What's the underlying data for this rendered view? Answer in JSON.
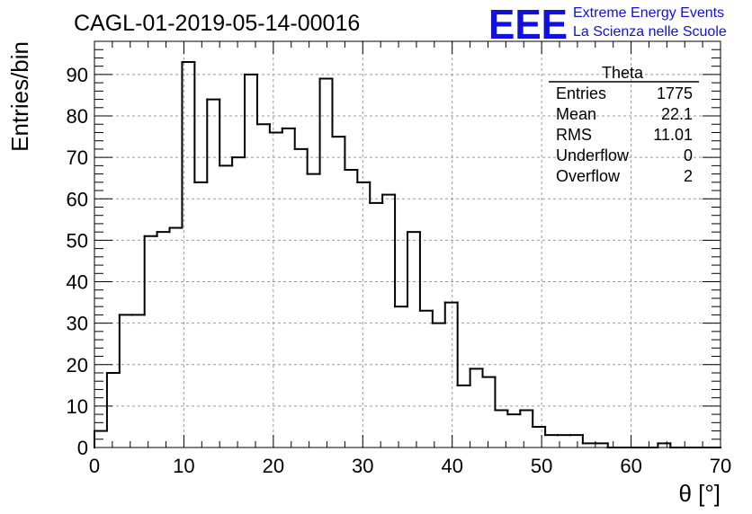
{
  "chart_data": {
    "type": "histogram",
    "title": "CAGL-01-2019-05-14-00016",
    "xlabel": "θ [°]",
    "ylabel": "Entries/bin",
    "xlim": [
      0,
      70
    ],
    "ylim": [
      0,
      98
    ],
    "x_ticks": [
      0,
      10,
      20,
      30,
      40,
      50,
      60,
      70
    ],
    "y_ticks": [
      0,
      10,
      20,
      30,
      40,
      50,
      60,
      70,
      80,
      90
    ],
    "grid": true,
    "bin_width": 1.4,
    "bin_start": 0,
    "values": [
      4,
      18,
      32,
      32,
      51,
      52,
      53,
      93,
      64,
      84,
      68,
      70,
      90,
      78,
      76,
      77,
      72,
      66,
      89,
      75,
      67,
      64,
      59,
      61,
      34,
      52,
      33,
      30,
      35,
      15,
      19,
      17,
      9,
      8,
      9,
      5,
      3,
      3,
      3,
      1,
      1,
      0,
      0,
      0,
      0,
      1,
      0,
      0,
      0,
      0
    ],
    "stats_box": {
      "name": "Theta",
      "rows": [
        {
          "label": "Entries",
          "value": "1775"
        },
        {
          "label": "Mean",
          "value": "22.1"
        },
        {
          "label": "RMS",
          "value": "11.01"
        },
        {
          "label": "Underflow",
          "value": "0"
        },
        {
          "label": "Overflow",
          "value": "2"
        }
      ]
    },
    "colors": {
      "line": "#000000",
      "grid": "#999999",
      "logo": "#1010e0"
    }
  },
  "logo": {
    "mark": "EEE",
    "line1": "Extreme Energy Events",
    "line2": "La Scienza nelle Scuole"
  }
}
